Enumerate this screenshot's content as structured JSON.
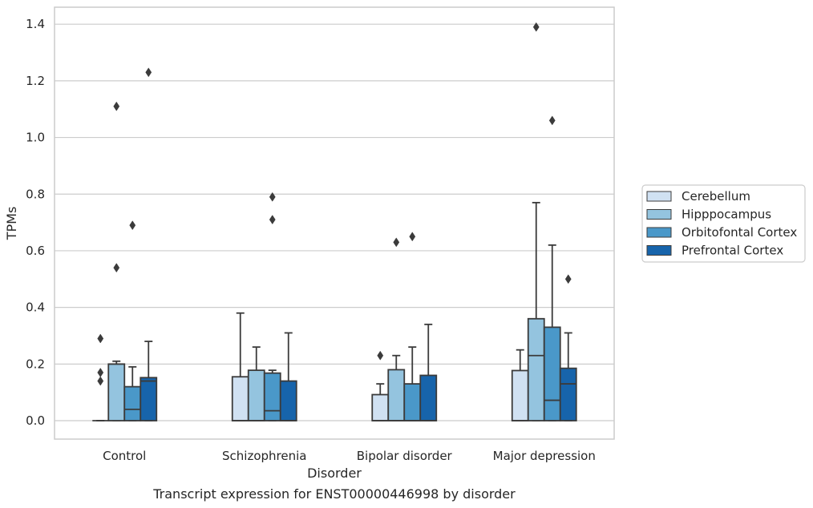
{
  "chart_data": {
    "type": "box",
    "xlabel": "Disorder",
    "ylabel": "TPMs",
    "caption": "Transcript expression for ENST00000446998 by disorder",
    "ylim": [
      -0.065,
      1.46
    ],
    "yticks": [
      0.0,
      0.2,
      0.4,
      0.6,
      0.8,
      1.0,
      1.2,
      1.4
    ],
    "ytick_labels": [
      "0.0",
      "0.2",
      "0.4",
      "0.6",
      "0.8",
      "1.0",
      "1.2",
      "1.4"
    ],
    "grid": true,
    "legend_position": "right, outside plot",
    "categories": [
      "Control",
      "Schizophrenia",
      "Bipolar disorder",
      "Major depression"
    ],
    "series": [
      {
        "name": "Cerebellum",
        "color": "#d0e1f2",
        "boxes": [
          {
            "q1": 0.0,
            "median": 0.0,
            "q3": 0.0,
            "whisker_low": 0.0,
            "whisker_high": 0.0,
            "outliers": [
              0.14,
              0.17,
              0.29
            ]
          },
          {
            "q1": 0.0,
            "median": 0.0,
            "q3": 0.155,
            "whisker_low": 0.0,
            "whisker_high": 0.38,
            "outliers": []
          },
          {
            "q1": 0.0,
            "median": 0.0,
            "q3": 0.092,
            "whisker_low": 0.0,
            "whisker_high": 0.13,
            "outliers": [
              0.23
            ]
          },
          {
            "q1": 0.0,
            "median": 0.0,
            "q3": 0.177,
            "whisker_low": 0.0,
            "whisker_high": 0.25,
            "outliers": []
          }
        ]
      },
      {
        "name": "Hipppocampus",
        "color": "#94c4df",
        "boxes": [
          {
            "q1": 0.0,
            "median": 0.2,
            "q3": 0.2,
            "whisker_low": 0.0,
            "whisker_high": 0.21,
            "outliers": [
              0.54,
              1.11
            ]
          },
          {
            "q1": 0.0,
            "median": 0.0,
            "q3": 0.178,
            "whisker_low": 0.0,
            "whisker_high": 0.26,
            "outliers": []
          },
          {
            "q1": 0.0,
            "median": 0.0,
            "q3": 0.18,
            "whisker_low": 0.0,
            "whisker_high": 0.23,
            "outliers": [
              0.63
            ]
          },
          {
            "q1": 0.0,
            "median": 0.23,
            "q3": 0.36,
            "whisker_low": 0.0,
            "whisker_high": 0.77,
            "outliers": [
              1.39
            ]
          }
        ]
      },
      {
        "name": "Orbitofontal Cortex",
        "color": "#4a98c9",
        "boxes": [
          {
            "q1": 0.0,
            "median": 0.04,
            "q3": 0.12,
            "whisker_low": 0.0,
            "whisker_high": 0.19,
            "outliers": [
              0.69
            ]
          },
          {
            "q1": 0.0,
            "median": 0.035,
            "q3": 0.168,
            "whisker_low": 0.0,
            "whisker_high": 0.178,
            "outliers": [
              0.71,
              0.79
            ]
          },
          {
            "q1": 0.0,
            "median": 0.0,
            "q3": 0.13,
            "whisker_low": 0.0,
            "whisker_high": 0.26,
            "outliers": [
              0.65
            ]
          },
          {
            "q1": 0.0,
            "median": 0.072,
            "q3": 0.33,
            "whisker_low": 0.0,
            "whisker_high": 0.62,
            "outliers": [
              1.06
            ]
          }
        ]
      },
      {
        "name": "Prefrontal Cortex",
        "color": "#1764ab",
        "boxes": [
          {
            "q1": 0.0,
            "median": 0.14,
            "q3": 0.152,
            "whisker_low": 0.0,
            "whisker_high": 0.28,
            "outliers": [
              1.23
            ]
          },
          {
            "q1": 0.0,
            "median": 0.0,
            "q3": 0.14,
            "whisker_low": 0.0,
            "whisker_high": 0.31,
            "outliers": []
          },
          {
            "q1": 0.0,
            "median": 0.0,
            "q3": 0.16,
            "whisker_low": 0.0,
            "whisker_high": 0.34,
            "outliers": []
          },
          {
            "q1": 0.0,
            "median": 0.13,
            "q3": 0.185,
            "whisker_low": 0.0,
            "whisker_high": 0.31,
            "outliers": [
              0.5
            ]
          }
        ]
      }
    ]
  }
}
